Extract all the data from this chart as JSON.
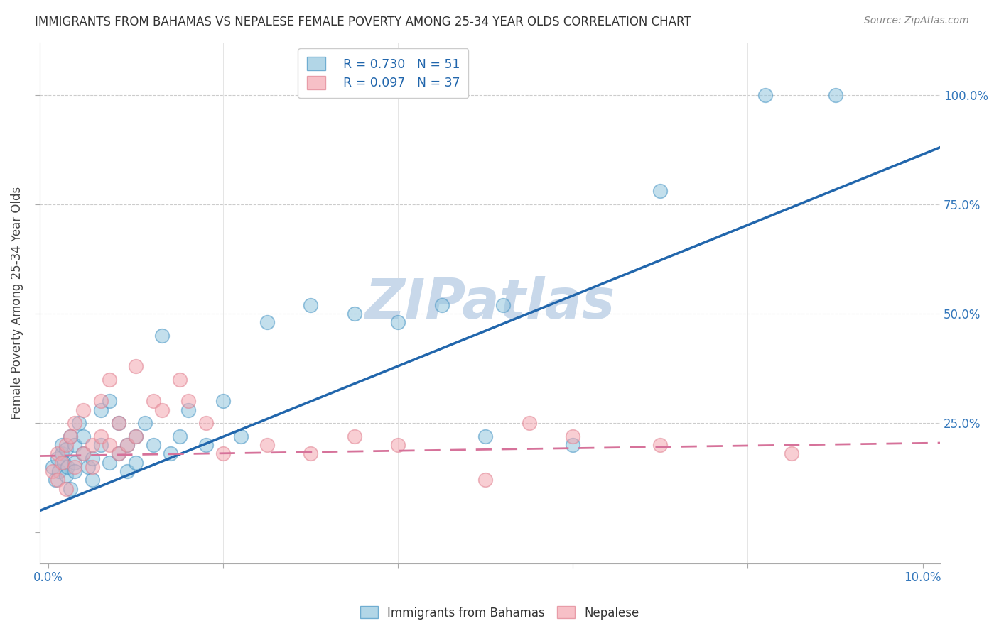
{
  "title": "IMMIGRANTS FROM BAHAMAS VS NEPALESE FEMALE POVERTY AMONG 25-34 YEAR OLDS CORRELATION CHART",
  "source": "Source: ZipAtlas.com",
  "ylabel": "Female Poverty Among 25-34 Year Olds",
  "xlim_min": -0.001,
  "xlim_max": 0.102,
  "ylim_min": -0.07,
  "ylim_max": 1.12,
  "blue_R": 0.73,
  "blue_N": 51,
  "pink_R": 0.097,
  "pink_N": 37,
  "blue_color": "#92c5de",
  "pink_color": "#f4a6b0",
  "blue_edge_color": "#4393c3",
  "pink_edge_color": "#d6604d",
  "pink_edge_color2": "#e08090",
  "blue_line_color": "#2166ac",
  "pink_line_color": "#d6729a",
  "watermark": "ZIPatlas",
  "watermark_color": "#c8d8ea",
  "legend_label_blue": "Immigrants from Bahamas",
  "legend_label_pink": "Nepalese",
  "blue_scatter_x": [
    0.0005,
    0.0008,
    0.001,
    0.0012,
    0.0015,
    0.0015,
    0.0018,
    0.002,
    0.002,
    0.0022,
    0.0025,
    0.0025,
    0.003,
    0.003,
    0.003,
    0.0035,
    0.004,
    0.004,
    0.0045,
    0.005,
    0.005,
    0.006,
    0.006,
    0.007,
    0.007,
    0.008,
    0.008,
    0.009,
    0.009,
    0.01,
    0.01,
    0.011,
    0.012,
    0.013,
    0.014,
    0.015,
    0.016,
    0.018,
    0.02,
    0.022,
    0.025,
    0.03,
    0.035,
    0.04,
    0.045,
    0.05,
    0.052,
    0.06,
    0.07,
    0.082,
    0.09
  ],
  "blue_scatter_y": [
    0.15,
    0.12,
    0.17,
    0.14,
    0.18,
    0.2,
    0.16,
    0.13,
    0.19,
    0.15,
    0.22,
    0.1,
    0.16,
    0.2,
    0.14,
    0.25,
    0.18,
    0.22,
    0.15,
    0.12,
    0.17,
    0.2,
    0.28,
    0.16,
    0.3,
    0.18,
    0.25,
    0.14,
    0.2,
    0.22,
    0.16,
    0.25,
    0.2,
    0.45,
    0.18,
    0.22,
    0.28,
    0.2,
    0.3,
    0.22,
    0.48,
    0.52,
    0.5,
    0.48,
    0.52,
    0.22,
    0.52,
    0.2,
    0.78,
    1.0,
    1.0
  ],
  "pink_scatter_x": [
    0.0005,
    0.001,
    0.001,
    0.0015,
    0.002,
    0.002,
    0.0025,
    0.003,
    0.003,
    0.004,
    0.004,
    0.005,
    0.005,
    0.006,
    0.006,
    0.007,
    0.007,
    0.008,
    0.008,
    0.009,
    0.01,
    0.01,
    0.012,
    0.013,
    0.015,
    0.016,
    0.018,
    0.02,
    0.025,
    0.03,
    0.035,
    0.04,
    0.05,
    0.055,
    0.06,
    0.07,
    0.085
  ],
  "pink_scatter_y": [
    0.14,
    0.12,
    0.18,
    0.16,
    0.2,
    0.1,
    0.22,
    0.15,
    0.25,
    0.18,
    0.28,
    0.2,
    0.15,
    0.3,
    0.22,
    0.2,
    0.35,
    0.18,
    0.25,
    0.2,
    0.38,
    0.22,
    0.3,
    0.28,
    0.35,
    0.3,
    0.25,
    0.18,
    0.2,
    0.18,
    0.22,
    0.2,
    0.12,
    0.25,
    0.22,
    0.2,
    0.18
  ],
  "blue_line_y0": 0.05,
  "blue_line_y1": 0.88,
  "pink_line_y0": 0.175,
  "pink_line_y1": 0.205
}
